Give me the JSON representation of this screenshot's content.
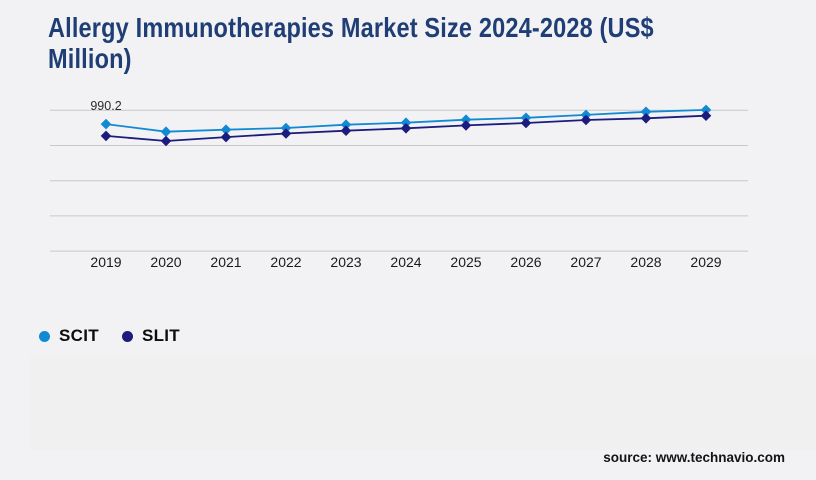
{
  "page": {
    "background": "#f2f2f5",
    "title_lines": [
      "Allergy Immunotherapies Market Size 2024-2028 (US$",
      "Million)"
    ],
    "title_color": "#1f3e75",
    "source": "source: www.technavio.com"
  },
  "chart_data": {
    "type": "line",
    "title": "Allergy Immunotherapies Market Size 2024-2028 (US$ Million)",
    "categories": [
      "2019",
      "2020",
      "2021",
      "2022",
      "2023",
      "2024",
      "2025",
      "2026",
      "2027",
      "2028",
      "2029"
    ],
    "series": [
      {
        "name": "SCIT",
        "color": "#1289d3",
        "values": [
          990.2,
          984.8,
          986.2,
          987.4,
          989.8,
          991.2,
          993.3,
          994.7,
          996.7,
          998.9,
          1000.3
        ]
      },
      {
        "name": "SLIT",
        "color": "#1c1c7e",
        "values": [
          981.8,
          978.2,
          981.0,
          983.5,
          985.5,
          987.2,
          989.3,
          991.0,
          993.1,
          994.3,
          996.2
        ]
      }
    ],
    "ylim": [
      900,
      1000
    ],
    "gridline_values": [
      1000,
      975,
      950,
      925,
      900
    ],
    "grid": true,
    "gridline_color": "#c6c8cd",
    "legend_position": "bottom-left",
    "marker": "diamond",
    "annotation": {
      "text": "990.2",
      "series": "SCIT",
      "category": "2019"
    }
  }
}
